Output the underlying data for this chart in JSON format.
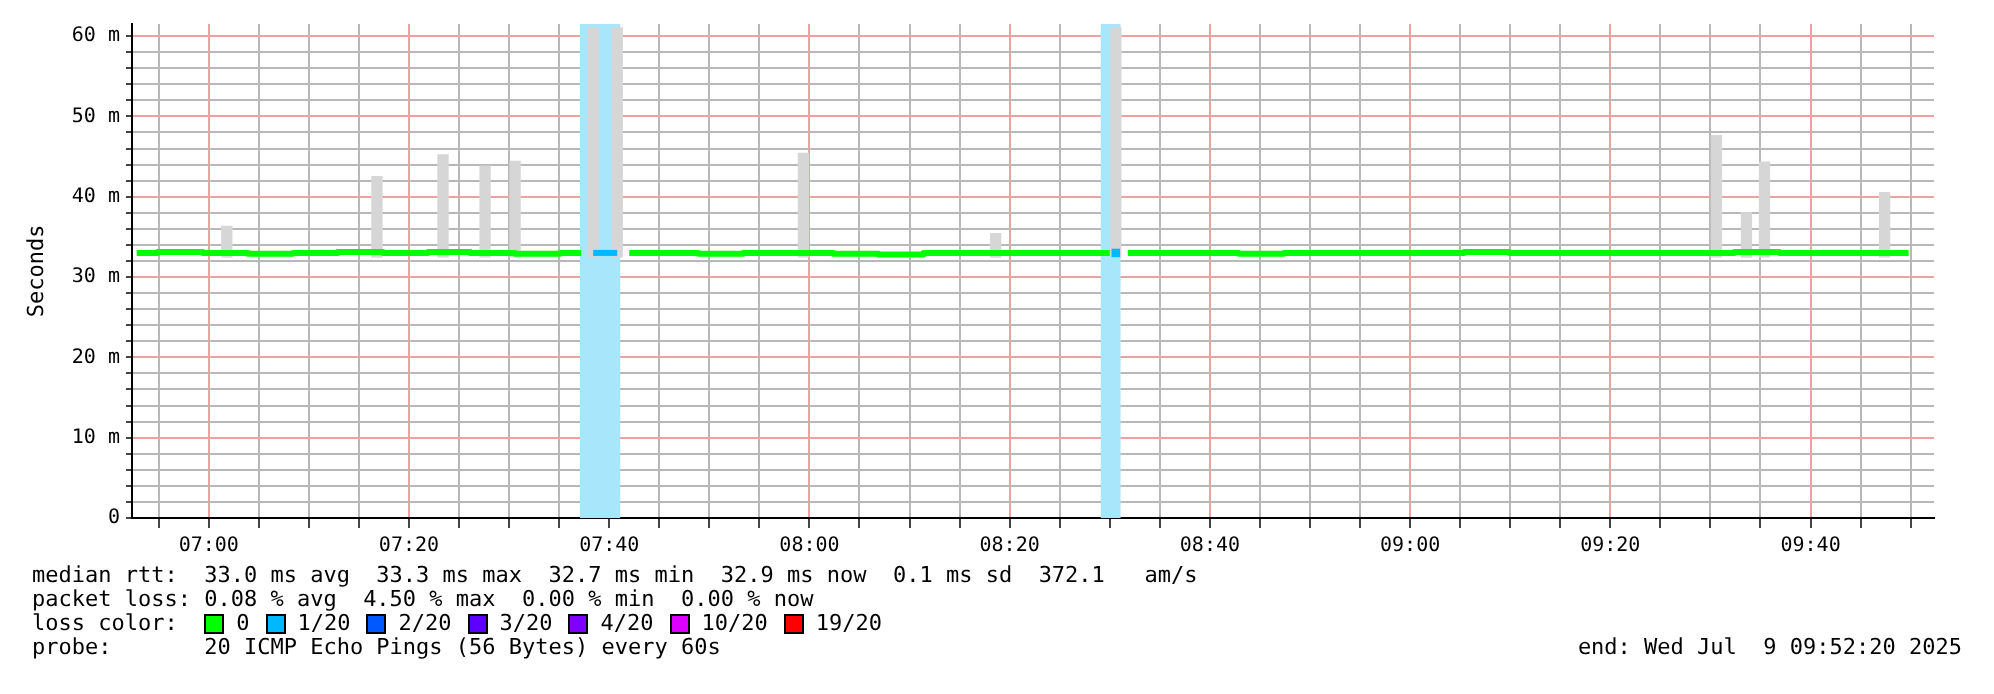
{
  "chart_data": {
    "type": "step",
    "ylabel": "Seconds",
    "legend_title": "loss color:",
    "legend": "bottom",
    "grid": true,
    "xlim": [
      6.8722,
      9.8722
    ],
    "xticks": [
      {
        "value": 6.9167,
        "label": null
      },
      {
        "value": 7,
        "label": "07:00"
      },
      {
        "value": 7.0833,
        "label": null
      },
      {
        "value": 7.1667,
        "label": null
      },
      {
        "value": 7.25,
        "label": null
      },
      {
        "value": 7.3333,
        "label": "07:20"
      },
      {
        "value": 7.4167,
        "label": null
      },
      {
        "value": 7.5,
        "label": null
      },
      {
        "value": 7.5833,
        "label": null
      },
      {
        "value": 7.6667,
        "label": "07:40"
      },
      {
        "value": 7.75,
        "label": null
      },
      {
        "value": 7.8333,
        "label": null
      },
      {
        "value": 7.9167,
        "label": null
      },
      {
        "value": 8,
        "label": "08:00"
      },
      {
        "value": 8.0833,
        "label": null
      },
      {
        "value": 8.1667,
        "label": null
      },
      {
        "value": 8.25,
        "label": null
      },
      {
        "value": 8.3333,
        "label": "08:20"
      },
      {
        "value": 8.4167,
        "label": null
      },
      {
        "value": 8.5,
        "label": null
      },
      {
        "value": 8.5833,
        "label": null
      },
      {
        "value": 8.6667,
        "label": "08:40"
      },
      {
        "value": 8.75,
        "label": null
      },
      {
        "value": 8.8333,
        "label": null
      },
      {
        "value": 8.9167,
        "label": null
      },
      {
        "value": 9,
        "label": "09:00"
      },
      {
        "value": 9.0833,
        "label": null
      },
      {
        "value": 9.1667,
        "label": null
      },
      {
        "value": 9.25,
        "label": null
      },
      {
        "value": 9.3333,
        "label": "09:20"
      },
      {
        "value": 9.4167,
        "label": null
      },
      {
        "value": 9.5,
        "label": null
      },
      {
        "value": 9.5833,
        "label": null
      },
      {
        "value": 9.6667,
        "label": "09:40"
      },
      {
        "value": 9.75,
        "label": null
      },
      {
        "value": 9.8333,
        "label": null
      }
    ],
    "ylim": [
      0,
      61.5
    ],
    "yticks": [
      {
        "value": 0,
        "label": "0"
      },
      {
        "value": 2,
        "label": null
      },
      {
        "value": 4,
        "label": null
      },
      {
        "value": 6,
        "label": null
      },
      {
        "value": 8,
        "label": null
      },
      {
        "value": 10,
        "label": "10 m"
      },
      {
        "value": 12,
        "label": null
      },
      {
        "value": 14,
        "label": null
      },
      {
        "value": 16,
        "label": null
      },
      {
        "value": 18,
        "label": null
      },
      {
        "value": 20,
        "label": "20 m"
      },
      {
        "value": 22,
        "label": null
      },
      {
        "value": 24,
        "label": null
      },
      {
        "value": 26,
        "label": null
      },
      {
        "value": 28,
        "label": null
      },
      {
        "value": 30,
        "label": "30 m"
      },
      {
        "value": 32,
        "label": null
      },
      {
        "value": 34,
        "label": null
      },
      {
        "value": 36,
        "label": null
      },
      {
        "value": 38,
        "label": null
      },
      {
        "value": 40,
        "label": "40 m"
      },
      {
        "value": 42,
        "label": null
      },
      {
        "value": 44,
        "label": null
      },
      {
        "value": 46,
        "label": null
      },
      {
        "value": 48,
        "label": null
      },
      {
        "value": 50,
        "label": "50 m"
      },
      {
        "value": 52,
        "label": null
      },
      {
        "value": 54,
        "label": null
      },
      {
        "value": 56,
        "label": null
      },
      {
        "value": 58,
        "label": null
      },
      {
        "value": 60,
        "label": "60 m"
      }
    ],
    "x": [
      6.88,
      6.95,
      7.03,
      7.1,
      7.18,
      7.25,
      7.33,
      7.4,
      7.47,
      7.55,
      7.62,
      7.64,
      7.68,
      7.7,
      7.78,
      7.85,
      7.93,
      8.0,
      8.08,
      8.15,
      8.23,
      8.3,
      8.38,
      8.45,
      8.5,
      8.51,
      8.53,
      8.6,
      8.68,
      8.75,
      8.83,
      8.9,
      8.98,
      9.05,
      9.13,
      9.2,
      9.28,
      9.35,
      9.43,
      9.5,
      9.58,
      9.65,
      9.73,
      9.8,
      9.83
    ],
    "series": [
      {
        "type": "bar",
        "color": "#d6d6d6",
        "x": [
          7.03,
          7.28,
          7.39,
          7.46,
          7.51,
          7.64,
          7.68,
          7.99,
          8.31,
          8.51,
          9.51,
          9.56,
          9.59,
          9.79
        ],
        "base": [
          32.5,
          32.5,
          32.5,
          32.5,
          32.5,
          32.5,
          32.5,
          32.5,
          32.5,
          32.5,
          32.5,
          32.5,
          32.5,
          32.5
        ],
        "values": [
          3.8,
          10,
          12.7,
          11.3,
          11.9,
          28.5,
          28.5,
          12.9,
          2.9,
          28.5,
          15.1,
          5.5,
          11.8,
          8
        ]
      },
      {
        "name": "0",
        "color": "#00ff00",
        "values": [
          33.0,
          33.1,
          33.0,
          32.9,
          33.0,
          33.1,
          33.0,
          33.1,
          33.0,
          32.9,
          33.0,
          null,
          null,
          33.0,
          33.0,
          32.9,
          33.0,
          33.0,
          32.9,
          32.8,
          33.0,
          33.0,
          33.0,
          33.0,
          33.0,
          null,
          33.0,
          33.0,
          33.0,
          32.9,
          33.0,
          33.0,
          33.0,
          33.0,
          33.1,
          33.0,
          33.0,
          33.0,
          33.0,
          33.0,
          33.1,
          33.0,
          33.0,
          33.0,
          33.0
        ]
      },
      {
        "name": "1/20",
        "color": "#00b8ff",
        "values": [
          null,
          null,
          null,
          null,
          null,
          null,
          null,
          null,
          null,
          null,
          null,
          33.0,
          33.0,
          null,
          null,
          null,
          null,
          null,
          null,
          null,
          null,
          null,
          null,
          null,
          null,
          33.0,
          null,
          null,
          null,
          null,
          null,
          null,
          null,
          null,
          null,
          null,
          null,
          null,
          null,
          null,
          null,
          null,
          null,
          null,
          null
        ]
      },
      {
        "name": "2/20",
        "color": "#0059ff",
        "values": [
          null,
          null,
          null,
          null,
          null,
          null,
          null,
          null,
          null,
          null,
          null,
          null,
          null,
          null,
          null,
          null,
          null,
          null,
          null,
          null,
          null,
          null,
          null,
          null,
          null,
          null,
          null,
          null,
          null,
          null,
          null,
          null,
          null,
          null,
          null,
          null,
          null,
          null,
          null,
          null,
          null,
          null,
          null,
          null,
          null
        ]
      },
      {
        "name": "3/20",
        "color": "#5e00ff",
        "values": [
          null,
          null,
          null,
          null,
          null,
          null,
          null,
          null,
          null,
          null,
          null,
          null,
          null,
          null,
          null,
          null,
          null,
          null,
          null,
          null,
          null,
          null,
          null,
          null,
          null,
          null,
          null,
          null,
          null,
          null,
          null,
          null,
          null,
          null,
          null,
          null,
          null,
          null,
          null,
          null,
          null,
          null,
          null,
          null,
          null
        ]
      },
      {
        "name": "4/20",
        "color": "#7e00ff",
        "values": [
          null,
          null,
          null,
          null,
          null,
          null,
          null,
          null,
          null,
          null,
          null,
          null,
          null,
          null,
          null,
          null,
          null,
          null,
          null,
          null,
          null,
          null,
          null,
          null,
          null,
          null,
          null,
          null,
          null,
          null,
          null,
          null,
          null,
          null,
          null,
          null,
          null,
          null,
          null,
          null,
          null,
          null,
          null,
          null,
          null
        ]
      },
      {
        "name": "10/20",
        "color": "#dd00ff",
        "values": [
          null,
          null,
          null,
          null,
          null,
          null,
          null,
          null,
          null,
          null,
          null,
          null,
          null,
          null,
          null,
          null,
          null,
          null,
          null,
          null,
          null,
          null,
          null,
          null,
          null,
          null,
          null,
          null,
          null,
          null,
          null,
          null,
          null,
          null,
          null,
          null,
          null,
          null,
          null,
          null,
          null,
          null,
          null,
          null,
          null
        ]
      },
      {
        "name": "19/20",
        "color": "#ff0000",
        "values": [
          null,
          null,
          null,
          null,
          null,
          null,
          null,
          null,
          null,
          null,
          null,
          null,
          null,
          null,
          null,
          null,
          null,
          null,
          null,
          null,
          null,
          null,
          null,
          null,
          null,
          null,
          null,
          null,
          null,
          null,
          null,
          null,
          null,
          null,
          null,
          null,
          null,
          null,
          null,
          null,
          null,
          null,
          null,
          null,
          null
        ]
      }
    ],
    "bands": [
      {
        "axis": "x",
        "from": 7.618,
        "to": 7.685,
        "color": "#a8e6fc"
      },
      {
        "axis": "x",
        "from": 8.485,
        "to": 8.518,
        "color": "#a8e6fc"
      }
    ],
    "annotations": [
      "median rtt:  33.0 ms avg  33.3 ms max  32.7 ms min  32.9 ms now  0.1 ms sd  372.1   am/s",
      "packet loss: 0.08 % avg  4.50 % max  0.00 % min  0.00 % now",
      "probe:       20 ICMP Echo Pings (56 Bytes) every 60s",
      "end: Wed Jul  9 09:52:20 2025"
    ]
  }
}
